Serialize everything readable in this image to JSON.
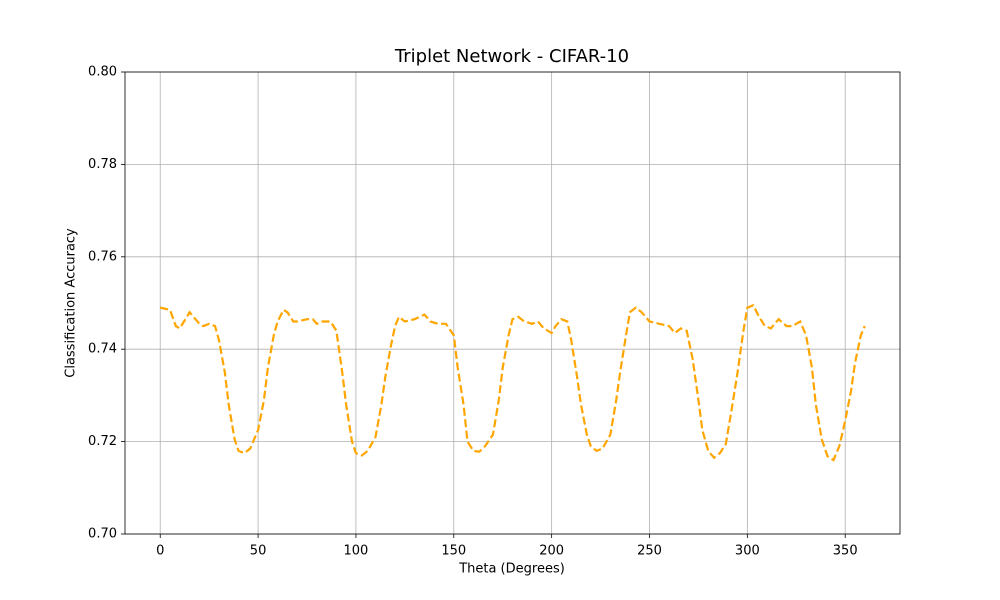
{
  "chart_data": {
    "type": "line",
    "title": "Triplet Network - CIFAR-10",
    "x_label": "Theta (Degrees)",
    "y_label": "Classification Accuracy",
    "x": [
      0,
      5,
      8,
      10,
      15,
      20,
      22,
      25,
      28,
      30,
      33,
      35,
      38,
      40,
      43,
      46,
      50,
      53,
      55,
      58,
      60,
      63,
      65,
      68,
      70,
      75,
      78,
      80,
      83,
      87,
      90,
      93,
      95,
      98,
      100,
      103,
      106,
      110,
      113,
      115,
      118,
      120,
      122,
      125,
      130,
      135,
      138,
      142,
      146,
      150,
      152,
      155,
      157,
      160,
      163,
      166,
      170,
      173,
      175,
      178,
      180,
      183,
      186,
      190,
      193,
      196,
      200,
      202,
      205,
      208,
      210,
      213,
      215,
      218,
      220,
      223,
      226,
      230,
      233,
      235,
      238,
      240,
      243,
      246,
      250,
      255,
      260,
      263,
      266,
      269,
      272,
      275,
      277,
      280,
      283,
      286,
      289,
      292,
      295,
      298,
      300,
      303,
      306,
      309,
      312,
      316,
      320,
      323,
      327,
      330,
      333,
      335,
      338,
      341,
      344,
      347,
      350,
      353,
      355,
      358,
      360
    ],
    "series": [
      {
        "name": "Accuracy",
        "color": "#ffa500",
        "values": [
          0.749,
          0.7485,
          0.745,
          0.7445,
          0.748,
          0.7455,
          0.745,
          0.7455,
          0.745,
          0.742,
          0.735,
          0.728,
          0.7205,
          0.718,
          0.7175,
          0.7185,
          0.7225,
          0.729,
          0.736,
          0.743,
          0.746,
          0.7485,
          0.748,
          0.746,
          0.746,
          0.7465,
          0.7465,
          0.7455,
          0.746,
          0.746,
          0.744,
          0.735,
          0.728,
          0.72,
          0.7175,
          0.717,
          0.718,
          0.721,
          0.728,
          0.734,
          0.741,
          0.745,
          0.747,
          0.746,
          0.7465,
          0.7475,
          0.746,
          0.7455,
          0.7455,
          0.743,
          0.736,
          0.728,
          0.72,
          0.718,
          0.7178,
          0.719,
          0.7215,
          0.729,
          0.736,
          0.743,
          0.7465,
          0.747,
          0.746,
          0.7455,
          0.746,
          0.7445,
          0.7435,
          0.745,
          0.7465,
          0.746,
          0.742,
          0.734,
          0.728,
          0.7215,
          0.719,
          0.718,
          0.7185,
          0.7215,
          0.729,
          0.735,
          0.743,
          0.748,
          0.749,
          0.748,
          0.746,
          0.7455,
          0.745,
          0.7435,
          0.7445,
          0.744,
          0.738,
          0.729,
          0.7225,
          0.718,
          0.7165,
          0.7175,
          0.7195,
          0.727,
          0.735,
          0.744,
          0.749,
          0.7495,
          0.747,
          0.745,
          0.7445,
          0.7465,
          0.745,
          0.745,
          0.746,
          0.743,
          0.736,
          0.728,
          0.7205,
          0.7168,
          0.716,
          0.719,
          0.7245,
          0.731,
          0.737,
          0.743,
          0.745
        ]
      }
    ],
    "xlim": [
      -18,
      378
    ],
    "ylim": [
      0.7,
      0.8
    ],
    "xticks": [
      0,
      50,
      100,
      150,
      200,
      250,
      300,
      350
    ],
    "yticks": [
      {
        "value": 0.7,
        "label": "0.70"
      },
      0.72,
      0.74,
      0.76,
      0.78,
      {
        "value": 0.8,
        "label": "0.80"
      }
    ],
    "grid": true,
    "line_style": "dashed"
  }
}
